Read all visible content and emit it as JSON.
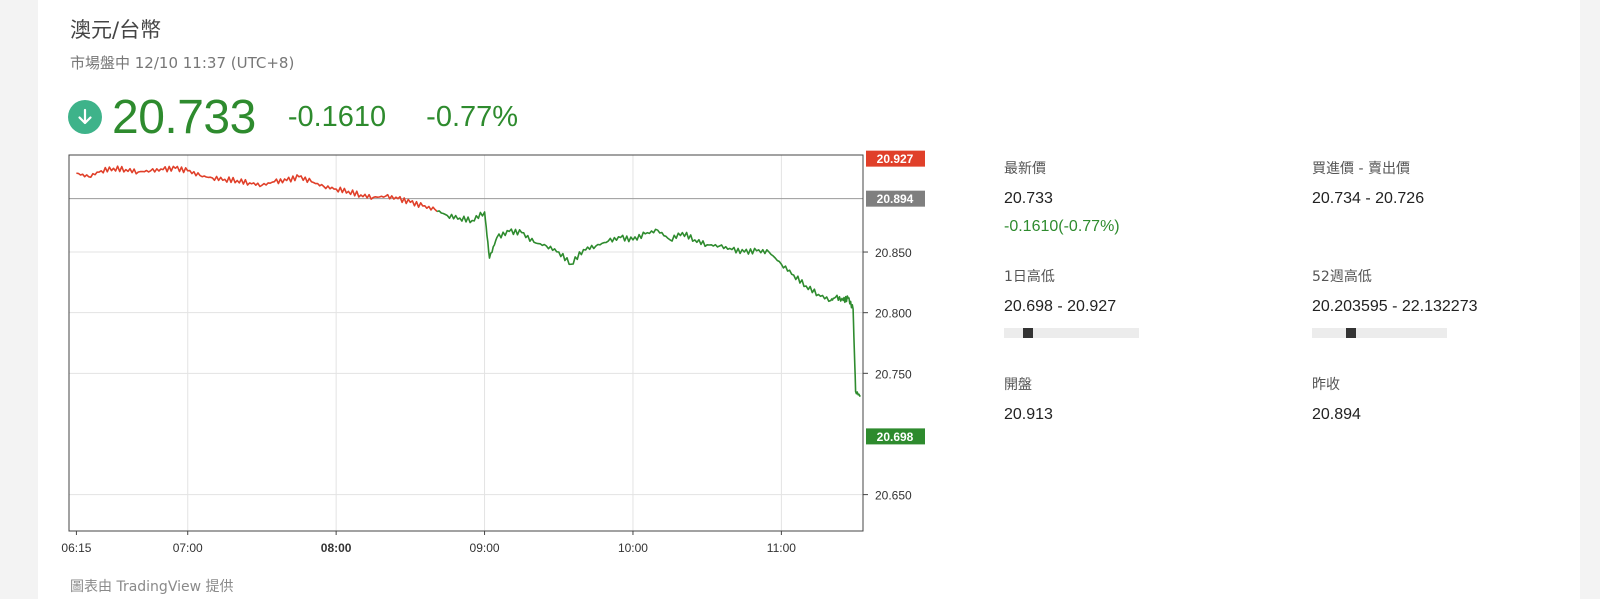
{
  "header": {
    "title": "澳元/台幣",
    "status": "市場盤中 12/10 11:37 (UTC+8)"
  },
  "quote": {
    "price": "20.733",
    "change": "-0.1610",
    "change_pct": "-0.77%",
    "direction_icon": "arrow-down-icon"
  },
  "colors": {
    "up": "#e0402a",
    "down": "#2e8b2e",
    "icon_bg": "#3eb38a",
    "prev_close_tag": "#7f7f7f"
  },
  "stats": {
    "last_label": "最新價",
    "last_value": "20.733",
    "last_change": "-0.1610(-0.77%)",
    "bidask_label": "買進價 - 賣出價",
    "bidask_value": "20.734 - 20.726",
    "day_label": "1日高低",
    "day_value": "20.698 - 20.927",
    "day_position": 0.15,
    "week52_label": "52週高低",
    "week52_value": "20.203595 - 22.132273",
    "week52_position": 0.27,
    "open_label": "開盤",
    "open_value": "20.913",
    "prev_label": "昨收",
    "prev_value": "20.894"
  },
  "credit": "圖表由 TradingView 提供",
  "chart_data": {
    "type": "line",
    "x_ticks": [
      "06:15",
      "07:00",
      "08:00",
      "09:00",
      "10:00",
      "11:00"
    ],
    "x_ticks_bold": "08:00",
    "y_ticks": [
      "20.650",
      "20.750",
      "20.800",
      "20.850"
    ],
    "ylim": [
      20.62,
      20.93
    ],
    "xlim": [
      "06:15",
      "11:32"
    ],
    "prev_close": 20.894,
    "high_tag": "20.927",
    "prev_close_tag": "20.894",
    "low_tag": "20.698",
    "grid": true,
    "series": [
      {
        "x": [
          "06:15",
          "06:20",
          "06:25",
          "06:30",
          "06:35",
          "06:40",
          "06:45",
          "06:50",
          "06:55",
          "07:00",
          "07:05",
          "07:10",
          "07:15",
          "07:20",
          "07:25",
          "07:30",
          "07:35",
          "07:40",
          "07:45",
          "07:50",
          "07:55",
          "08:00",
          "08:05",
          "08:10",
          "08:15",
          "08:20",
          "08:25",
          "08:30",
          "08:35",
          "08:40",
          "08:45",
          "08:50",
          "08:55",
          "09:00",
          "09:02",
          "09:05",
          "09:10",
          "09:15",
          "09:20",
          "09:25",
          "09:30",
          "09:35",
          "09:40",
          "09:45",
          "09:50",
          "09:55",
          "10:00",
          "10:05",
          "10:10",
          "10:15",
          "10:20",
          "10:25",
          "10:30",
          "10:35",
          "10:40",
          "10:45",
          "10:50",
          "10:55",
          "11:00",
          "11:05",
          "11:10",
          "11:15",
          "11:20",
          "11:22",
          "11:25",
          "11:27",
          "11:29",
          "11:30",
          "11:32"
        ],
        "y": [
          20.915,
          20.912,
          20.917,
          20.919,
          20.918,
          20.916,
          20.917,
          20.918,
          20.919,
          20.917,
          20.913,
          20.911,
          20.91,
          20.909,
          20.907,
          20.905,
          20.908,
          20.909,
          20.912,
          20.908,
          20.904,
          20.902,
          20.9,
          20.897,
          20.895,
          20.896,
          20.894,
          20.891,
          20.888,
          20.885,
          20.88,
          20.878,
          20.876,
          20.883,
          20.845,
          20.862,
          20.867,
          20.866,
          20.858,
          20.855,
          20.85,
          20.84,
          20.852,
          20.855,
          20.859,
          20.862,
          20.86,
          20.865,
          20.868,
          20.86,
          20.866,
          20.86,
          20.856,
          20.855,
          20.852,
          20.85,
          20.851,
          20.85,
          20.84,
          20.831,
          20.822,
          20.815,
          20.81,
          20.813,
          20.81,
          20.812,
          20.803,
          20.735,
          20.731
        ]
      }
    ]
  }
}
